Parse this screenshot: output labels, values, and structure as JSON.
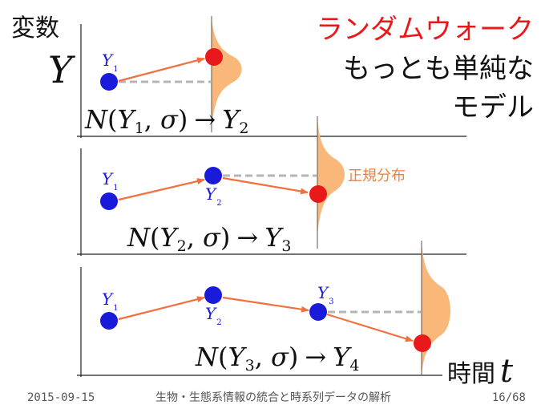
{
  "slide": {
    "variable_label": "変数",
    "variable_symbol": "Y",
    "title_red": "ランダムウォーク",
    "subtitle_line1": "もっとも単純な",
    "subtitle_line2": "モデル",
    "normal_label": "正規分布",
    "time_label": "時間",
    "time_symbol": "t",
    "colors": {
      "red": "#e8191a",
      "blue": "#1a1adb",
      "orange": "#f07040",
      "dist_fill": "#f9b87a",
      "gray": "#b5b5b5",
      "label_orange": "#f08040"
    }
  },
  "panels": [
    {
      "formula": {
        "lhs": "N",
        "open": "(",
        "arg_sym": "Y",
        "arg_sub": "1",
        "sep": ", ",
        "sigma": "σ",
        "close": ")",
        "arrow": "→",
        "res_sym": "Y",
        "res_sub": "2"
      },
      "points": [
        {
          "sym": "Y",
          "sub": "1"
        }
      ]
    },
    {
      "formula": {
        "lhs": "N",
        "open": "(",
        "arg_sym": "Y",
        "arg_sub": "2",
        "sep": ", ",
        "sigma": "σ",
        "close": ")",
        "arrow": "→",
        "res_sym": "Y",
        "res_sub": "3"
      },
      "points": [
        {
          "sym": "Y",
          "sub": "1"
        },
        {
          "sym": "Y",
          "sub": "2"
        }
      ]
    },
    {
      "formula": {
        "lhs": "N",
        "open": "(",
        "arg_sym": "Y",
        "arg_sub": "3",
        "sep": ", ",
        "sigma": "σ",
        "close": ")",
        "arrow": "→",
        "res_sym": "Y",
        "res_sub": "4"
      },
      "points": [
        {
          "sym": "Y",
          "sub": "1"
        },
        {
          "sym": "Y",
          "sub": "2"
        },
        {
          "sym": "Y",
          "sub": "3"
        }
      ]
    }
  ],
  "footer": {
    "date": "2015-09-15",
    "title": "生物・生態系情報の統合と時系列データの解析",
    "page": "16/68"
  }
}
